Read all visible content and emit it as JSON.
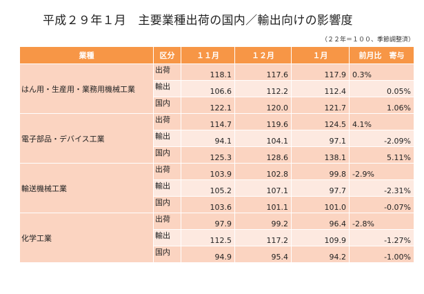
{
  "title": "平成２９年１月　主要業種出荷の国内／輸出向けの影響度",
  "note": "（２２年＝１００、季節調整済）",
  "headers": {
    "industry": "業種",
    "kubun": "区分",
    "m11": "１１月",
    "m12": "１２月",
    "m1": "１月",
    "contrib": "前月比　寄与"
  },
  "groups": [
    {
      "name": "はん用・生産用・業務用機械工業",
      "rows": [
        {
          "kubun": "出荷",
          "m11": "118.1",
          "m12": "117.6",
          "m1": "117.9",
          "contrib": "0.3%",
          "align": "left"
        },
        {
          "kubun": "輸出",
          "m11": "106.6",
          "m12": "112.2",
          "m1": "112.4",
          "contrib": "0.05%",
          "align": "right"
        },
        {
          "kubun": "国内",
          "m11": "122.1",
          "m12": "120.0",
          "m1": "121.7",
          "contrib": "1.06%",
          "align": "right"
        }
      ]
    },
    {
      "name": "電子部品・デバイス工業",
      "rows": [
        {
          "kubun": "出荷",
          "m11": "114.7",
          "m12": "119.6",
          "m1": "124.5",
          "contrib": "4.1%",
          "align": "left"
        },
        {
          "kubun": "輸出",
          "m11": "94.1",
          "m12": "104.1",
          "m1": "97.1",
          "contrib": "-2.09%",
          "align": "right"
        },
        {
          "kubun": "国内",
          "m11": "125.3",
          "m12": "128.6",
          "m1": "138.1",
          "contrib": "5.11%",
          "align": "right"
        }
      ]
    },
    {
      "name": "輸送機械工業",
      "rows": [
        {
          "kubun": "出荷",
          "m11": "103.9",
          "m12": "102.8",
          "m1": "99.8",
          "contrib": "-2.9%",
          "align": "left"
        },
        {
          "kubun": "輸出",
          "m11": "105.2",
          "m12": "107.1",
          "m1": "97.7",
          "contrib": "-2.31%",
          "align": "right"
        },
        {
          "kubun": "国内",
          "m11": "103.6",
          "m12": "101.1",
          "m1": "101.0",
          "contrib": "-0.07%",
          "align": "right"
        }
      ]
    },
    {
      "name": "化学工業",
      "rows": [
        {
          "kubun": "出荷",
          "m11": "97.9",
          "m12": "99.2",
          "m1": "96.4",
          "contrib": "-2.8%",
          "align": "left"
        },
        {
          "kubun": "輸出",
          "m11": "112.5",
          "m12": "117.2",
          "m1": "109.9",
          "contrib": "-1.27%",
          "align": "right"
        },
        {
          "kubun": "国内",
          "m11": "94.9",
          "m12": "95.4",
          "m1": "94.2",
          "contrib": "-1.00%",
          "align": "right"
        }
      ]
    }
  ]
}
